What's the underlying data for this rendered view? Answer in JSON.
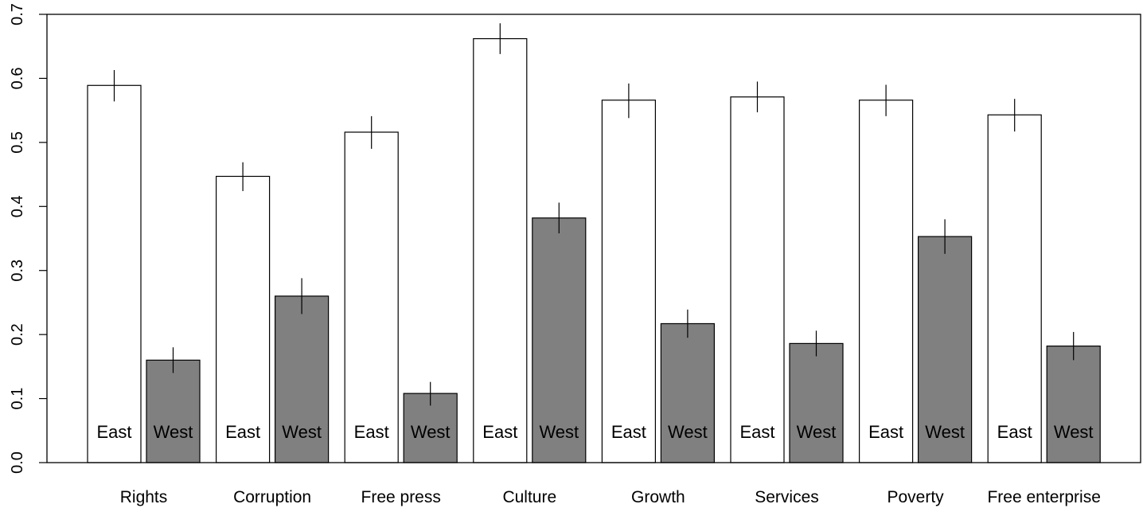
{
  "chart_data": {
    "type": "bar",
    "title": "",
    "xlabel": "",
    "ylabel": "",
    "ylim": [
      0,
      0.7
    ],
    "yticks": [
      "0.0",
      "0.1",
      "0.2",
      "0.3",
      "0.4",
      "0.5",
      "0.6",
      "0.7"
    ],
    "grid": false,
    "legend": "none",
    "categories": [
      "Rights",
      "Corruption",
      "Free press",
      "Culture",
      "Growth",
      "Services",
      "Poverty",
      "Free enterprise"
    ],
    "series": [
      {
        "name": "East",
        "color": "#ffffff",
        "values": [
          0.589,
          0.447,
          0.516,
          0.662,
          0.566,
          0.571,
          0.566,
          0.543
        ],
        "error_low": [
          0.564,
          0.424,
          0.49,
          0.638,
          0.538,
          0.547,
          0.541,
          0.517
        ],
        "error_high": [
          0.613,
          0.469,
          0.541,
          0.686,
          0.592,
          0.595,
          0.59,
          0.568
        ]
      },
      {
        "name": "West",
        "color": "#808080",
        "values": [
          0.16,
          0.26,
          0.108,
          0.382,
          0.217,
          0.186,
          0.353,
          0.182
        ],
        "error_low": [
          0.14,
          0.232,
          0.089,
          0.358,
          0.195,
          0.166,
          0.326,
          0.16
        ],
        "error_high": [
          0.18,
          0.288,
          0.126,
          0.406,
          0.239,
          0.206,
          0.38,
          0.204
        ]
      }
    ]
  }
}
